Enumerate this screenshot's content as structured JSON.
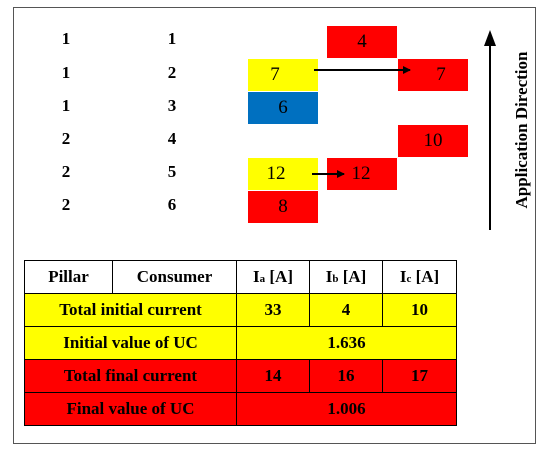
{
  "rows": [
    {
      "pillar": "1",
      "consumer": "1"
    },
    {
      "pillar": "1",
      "consumer": "2"
    },
    {
      "pillar": "1",
      "consumer": "3"
    },
    {
      "pillar": "2",
      "consumer": "4"
    },
    {
      "pillar": "2",
      "consumer": "5"
    },
    {
      "pillar": "2",
      "consumer": "6"
    }
  ],
  "cells": {
    "r1_b": "4",
    "r2_a": "7",
    "r2_c": "7",
    "r3_a": "6",
    "r4_c": "10",
    "r5_a": "12",
    "r5_b": "12",
    "r6_a": "8"
  },
  "direction_label": "Application Direction",
  "table": {
    "header": {
      "pillar": "Pillar",
      "consumer": "Consumer",
      "ia_main": "I",
      "ia_sub": "a",
      "ia_unit": " [A]",
      "ib_main": "I",
      "ib_sub": "b",
      "ib_unit": " [A]",
      "ic_main": "I",
      "ic_sub": "c",
      "ic_unit": " [A]"
    },
    "total_initial": {
      "label": "Total initial current",
      "a": "33",
      "b": "4",
      "c": "10"
    },
    "initial_uc": {
      "label": "Initial value of UC",
      "value": "1.636"
    },
    "total_final": {
      "label": "Total final current",
      "a": "14",
      "b": "16",
      "c": "17"
    },
    "final_uc": {
      "label": "Final value of UC",
      "value": "1.006"
    }
  },
  "colors": {
    "red": "#ff0000",
    "yellow": "#ffff00",
    "blue": "#0070c0"
  }
}
